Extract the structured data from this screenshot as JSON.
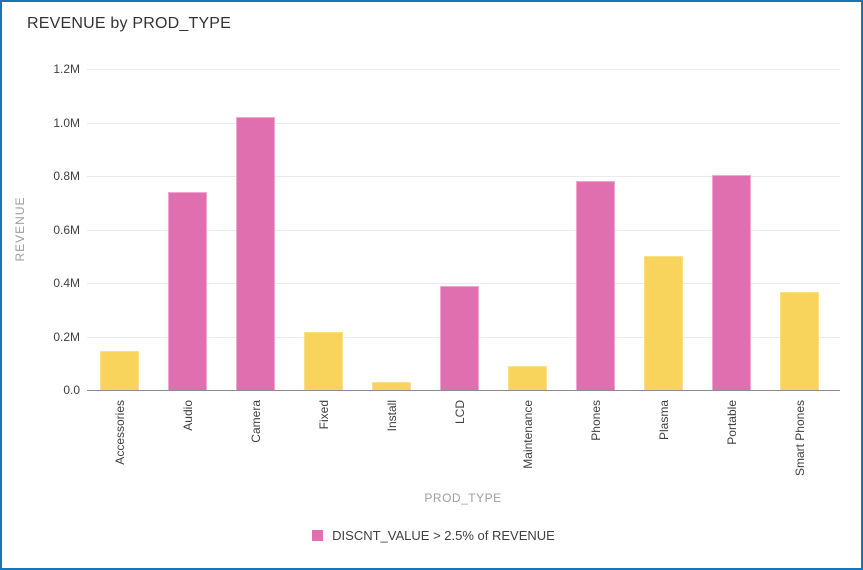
{
  "window": {
    "title": "REVENUE by PROD_TYPE"
  },
  "colors": {
    "frame_border": "#1776BA",
    "highlight_pink": "#E06FB0",
    "highlight_pink_edge": "#F0A6D1",
    "regular_yellow": "#F8D45C",
    "regular_yellow_edge": "#FADF8B",
    "axis_line": "#8C8C8C",
    "gridline": "#E9E9EE",
    "tick_text": "#3F3F3F",
    "axis_title_text": "#9E9E9E",
    "title_text": "#333333",
    "legend_text": "#404040"
  },
  "chart_data": {
    "type": "bar",
    "title": "REVENUE by PROD_TYPE",
    "xlabel": "PROD_TYPE",
    "ylabel": "REVENUE",
    "categories": [
      "Accessories",
      "Audio",
      "Camera",
      "Fixed",
      "Install",
      "LCD",
      "Maintenance",
      "Phones",
      "Plasma",
      "Portable",
      "Smart Phones"
    ],
    "values": [
      145000,
      740000,
      1020000,
      215000,
      30000,
      390000,
      90000,
      780000,
      500000,
      805000,
      365000
    ],
    "highlighted": [
      false,
      true,
      true,
      false,
      false,
      true,
      false,
      true,
      false,
      true,
      false
    ],
    "ylim": [
      0,
      1200000
    ],
    "y_tick_values": [
      0,
      200000,
      400000,
      600000,
      800000,
      1000000,
      1200000
    ],
    "y_tick_labels": [
      "0.0",
      "0.2M",
      "0.4M",
      "0.6M",
      "0.8M",
      "1.0M",
      "1.2M"
    ],
    "grid": true,
    "legend": {
      "position": "bottom",
      "entries": [
        {
          "label": "DISCNT_VALUE > 2.5% of REVENUE",
          "color": "#E06FB0"
        }
      ]
    }
  }
}
